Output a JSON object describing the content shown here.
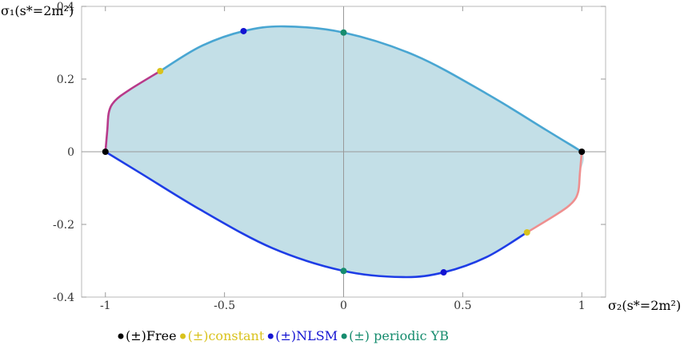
{
  "chart_data": {
    "type": "area",
    "title": "",
    "xlabel": "σ₂(s*=2m²)",
    "ylabel": "σ₁(s*=2m²)",
    "xlim": [
      -1.1,
      1.1
    ],
    "ylim": [
      -0.4,
      0.4
    ],
    "x_ticks": [
      {
        "value": -1,
        "label": "-1"
      },
      {
        "value": -0.5,
        "label": "-0.5"
      },
      {
        "value": 0,
        "label": "0"
      },
      {
        "value": 0.5,
        "label": "0.5"
      },
      {
        "value": 1,
        "label": "1"
      }
    ],
    "y_ticks": [
      {
        "value": 0.4,
        "label": "0.4"
      },
      {
        "value": 0.2,
        "label": "0.2"
      },
      {
        "value": 0,
        "label": "0"
      },
      {
        "value": -0.2,
        "label": "-0.2"
      },
      {
        "value": -0.4,
        "label": "-0.4"
      }
    ],
    "fill_color": "#c3dfe7",
    "boundary_segments": [
      {
        "name": "upper boundary",
        "color": "#49a6d2",
        "points": [
          [
            -0.77,
            0.222
          ],
          [
            -0.6,
            0.29
          ],
          [
            -0.42,
            0.332
          ],
          [
            -0.25,
            0.345
          ],
          [
            0,
            0.328
          ],
          [
            0.3,
            0.265
          ],
          [
            0.6,
            0.16
          ],
          [
            0.85,
            0.06
          ],
          [
            1.0,
            0.0
          ]
        ]
      },
      {
        "name": "left upper segment",
        "color": "#b83a8a",
        "points": [
          [
            -1.0,
            0.0
          ],
          [
            -0.992,
            0.06
          ],
          [
            -0.985,
            0.11
          ],
          [
            -0.96,
            0.14
          ],
          [
            -0.9,
            0.17
          ],
          [
            -0.77,
            0.222
          ]
        ]
      },
      {
        "name": "lower boundary",
        "color": "#1e3de6",
        "points": [
          [
            -1.0,
            0.0
          ],
          [
            -0.85,
            -0.06
          ],
          [
            -0.6,
            -0.16
          ],
          [
            -0.3,
            -0.265
          ],
          [
            0,
            -0.328
          ],
          [
            0.25,
            -0.345
          ],
          [
            0.42,
            -0.332
          ],
          [
            0.6,
            -0.29
          ],
          [
            0.77,
            -0.222
          ]
        ]
      },
      {
        "name": "right lower segment",
        "color": "#ee8f8f",
        "points": [
          [
            1.0,
            0.0
          ],
          [
            0.992,
            -0.06
          ],
          [
            0.985,
            -0.11
          ],
          [
            0.96,
            -0.14
          ],
          [
            0.9,
            -0.17
          ],
          [
            0.77,
            -0.222
          ]
        ]
      }
    ],
    "points": [
      {
        "group": "free",
        "x": -1.0,
        "y": 0.0
      },
      {
        "group": "free",
        "x": 1.0,
        "y": 0.0
      },
      {
        "group": "constant",
        "x": -0.77,
        "y": 0.222
      },
      {
        "group": "constant",
        "x": 0.77,
        "y": -0.222
      },
      {
        "group": "nlsm",
        "x": -0.42,
        "y": 0.332
      },
      {
        "group": "nlsm",
        "x": 0.42,
        "y": -0.332
      },
      {
        "group": "periodic",
        "x": 0.0,
        "y": 0.328
      },
      {
        "group": "periodic",
        "x": 0.0,
        "y": -0.328
      }
    ],
    "legend": {
      "placement": "bottom",
      "items": [
        {
          "group": "free",
          "text": "(±)Free",
          "color": "#000000",
          "text_color": "#000000"
        },
        {
          "group": "constant",
          "text": "(±)constant",
          "color": "#d9c21c",
          "text_color": "#d9c21c"
        },
        {
          "group": "nlsm",
          "text": "(±)NLSM",
          "color": "#1414d2",
          "text_color": "#1414d2"
        },
        {
          "group": "periodic",
          "text": "(±) periodic YB",
          "color": "#168c6e",
          "text_color": "#168c6e"
        }
      ]
    },
    "grid": false
  }
}
